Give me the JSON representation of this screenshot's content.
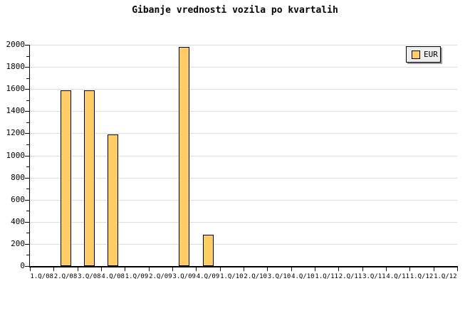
{
  "title": "Gibanje vrednosti vozila po kvartalih",
  "legend": {
    "label": "EUR"
  },
  "colors": {
    "background": "#FFFFFF",
    "bar_fill": "#FFCC66",
    "bar_border": "#000000",
    "gridline": "#DDDDDD",
    "axis": "#000000",
    "legend_bg": "#EEEEEE",
    "legend_shadow": "#999999",
    "text": "#000000"
  },
  "chart_data": {
    "type": "bar",
    "title": "Gibanje vrednosti vozila po kvartalih",
    "categories": [
      "1.Q/08",
      "2.Q/08",
      "3.Q/08",
      "4.Q/08",
      "1.Q/09",
      "2.Q/09",
      "3.Q/09",
      "4.Q/09",
      "1.Q/10",
      "2.Q/10",
      "3.Q/10",
      "4.Q/10",
      "1.Q/11",
      "2.Q/11",
      "3.Q/11",
      "4.Q/11",
      "1.Q/12",
      "1.Q/12"
    ],
    "series": [
      {
        "name": "EUR",
        "values": [
          null,
          1590,
          1590,
          1190,
          null,
          null,
          1980,
          280,
          null,
          null,
          null,
          null,
          null,
          null,
          null,
          null,
          null,
          null
        ]
      }
    ],
    "xlabel": "",
    "ylabel": "",
    "ylim": [
      0,
      2000
    ],
    "y_major_step": 200,
    "y_minor_step": 100,
    "grid": true,
    "legend_position": "top-right"
  }
}
